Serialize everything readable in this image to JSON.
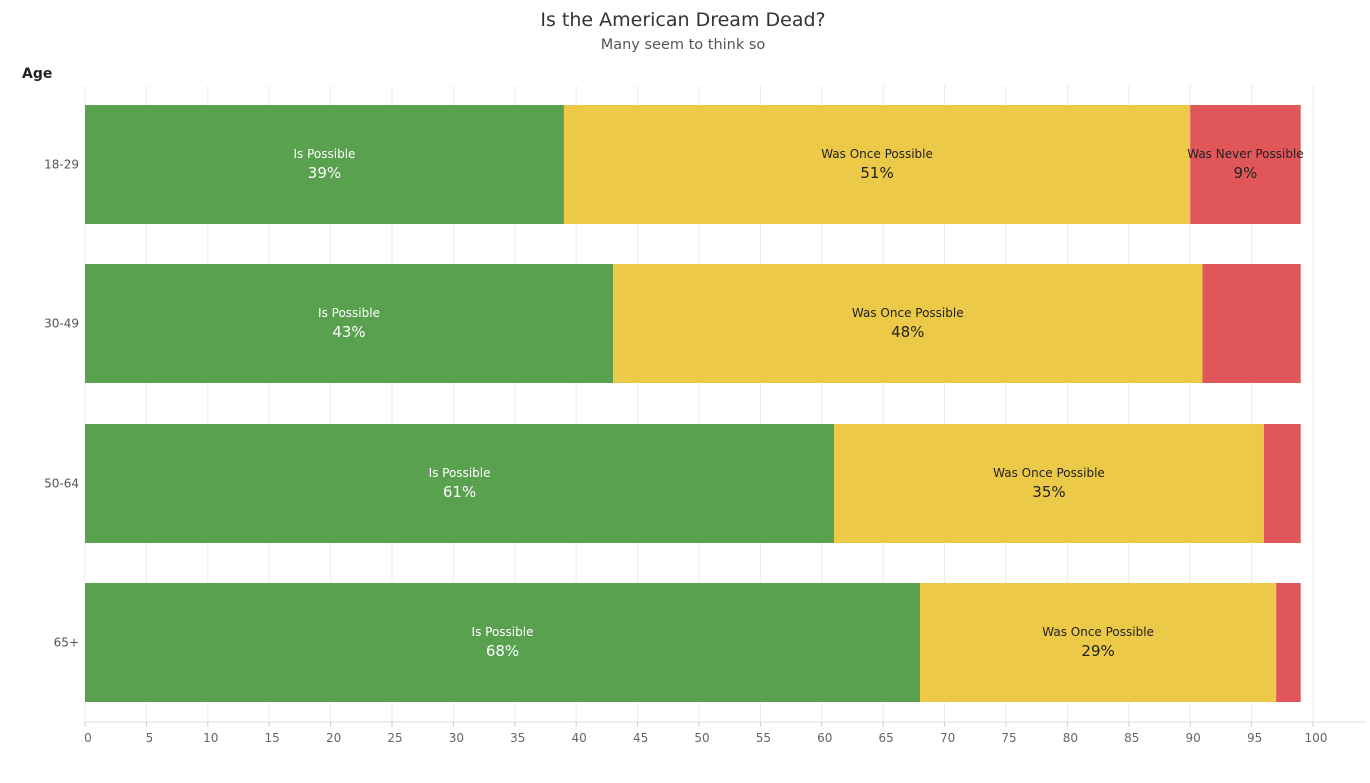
{
  "chart_data": {
    "type": "bar",
    "orientation": "horizontal",
    "stacked": true,
    "title": "Is the American Dream Dead?",
    "subtitle": "Many seem to think so",
    "ylabel": "Age",
    "xlabel": "",
    "xlim": [
      0,
      100
    ],
    "xticks": [
      0,
      5,
      10,
      15,
      20,
      25,
      30,
      35,
      40,
      45,
      50,
      55,
      60,
      65,
      70,
      75,
      80,
      85,
      90,
      95,
      100
    ],
    "grid": "vertical",
    "categories": [
      "18-29",
      "30-49",
      "50-64",
      "65+"
    ],
    "series": [
      {
        "name": "Is Possible",
        "color": "#59a14f",
        "label_color": "#ffffff",
        "values": [
          39,
          43,
          61,
          68
        ],
        "labels": [
          "39%",
          "43%",
          "61%",
          "68%"
        ]
      },
      {
        "name": "Was Once Possible",
        "color": "#edc948",
        "label_color": "#222222",
        "values": [
          51,
          48,
          35,
          29
        ],
        "labels": [
          "51%",
          "48%",
          "35%",
          "29%"
        ]
      },
      {
        "name": "Was Never Possible",
        "color": "#e15759",
        "label_color": "#222222",
        "values": [
          9,
          8,
          3,
          2
        ],
        "labels": [
          "9%",
          "",
          "",
          ""
        ]
      }
    ]
  }
}
